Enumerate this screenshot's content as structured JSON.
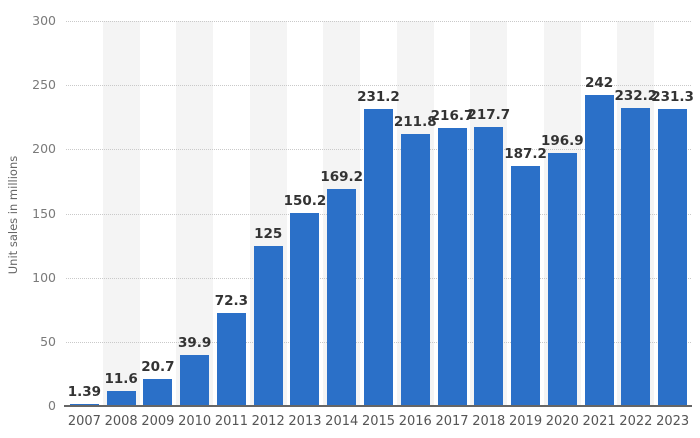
{
  "chart_data": {
    "type": "bar",
    "title": "",
    "categories": [
      "2007",
      "2008",
      "2009",
      "2010",
      "2011",
      "2012",
      "2013",
      "2014",
      "2015",
      "2016",
      "2017",
      "2018",
      "2019",
      "2020",
      "2021",
      "2022",
      "2023"
    ],
    "values": [
      1.39,
      11.6,
      20.7,
      39.9,
      72.3,
      125,
      150.2,
      169.2,
      231.2,
      211.8,
      216.7,
      217.7,
      187.2,
      196.9,
      242,
      232.2,
      231.3
    ],
    "value_labels": [
      "1.39",
      "11.6",
      "20.7",
      "39.9",
      "72.3",
      "125",
      "150.2",
      "169.2",
      "231.2",
      "211.8",
      "216.7",
      "217.7",
      "187.2",
      "196.9",
      "242",
      "232.2",
      "231.3"
    ],
    "xlabel": "",
    "ylabel": "Unit sales in millions",
    "ylim": [
      0,
      300
    ],
    "yticks": [
      0,
      50,
      100,
      150,
      200,
      250,
      300
    ],
    "grid": "horizontal-dotted",
    "legend": "none",
    "column_stripes": "alternating, starting at second category",
    "colors": {
      "bar": "#2B70C8",
      "value_label": "#333333",
      "y_tick_label": "#7a7a7a",
      "x_tick_label": "#555555",
      "stripe": "#f4f4f4",
      "gridline": "#c9c9c9",
      "axis_line": "#666666",
      "background": "#ffffff"
    }
  }
}
